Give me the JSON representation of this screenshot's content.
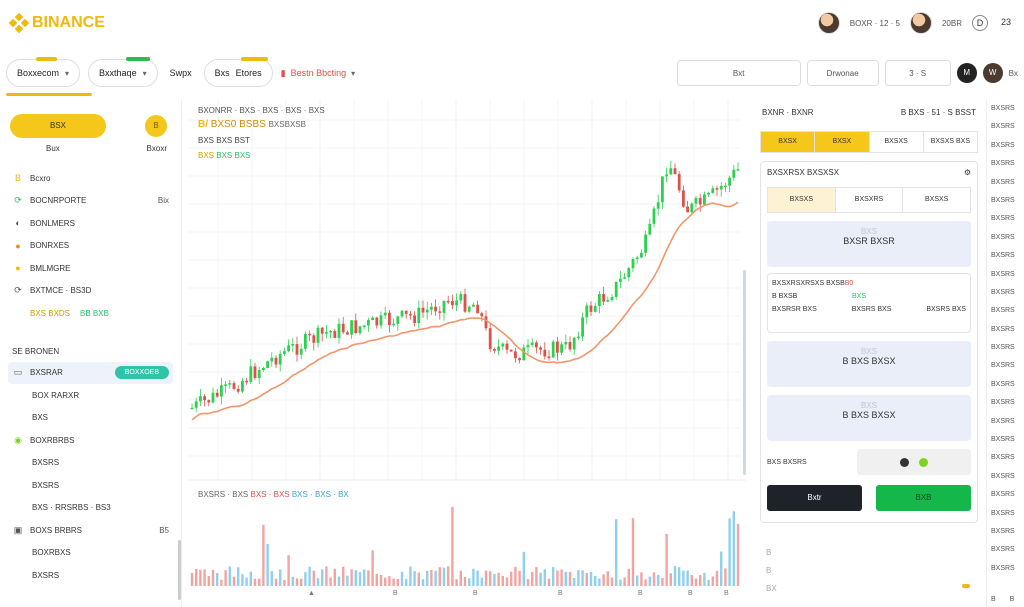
{
  "header": {
    "logo_text": "BINANCE",
    "user_a_text": "BOXR · 12 · 5",
    "user_b_text": "20BR",
    "icon_a": "D",
    "icon_b": "23"
  },
  "toolbar": {
    "pill1": "Boxxecom",
    "pill2": "Bxxthaqe",
    "plain1": "Swpx",
    "pill3_a": "Bxs",
    "pill3_b": "Etores",
    "red_item": "Bestn Bbcting",
    "search_placeholder": "Bxt",
    "input2": "Drwonae",
    "input3": "3 · S",
    "circle_a": "M",
    "circle_b": "W",
    "icon_c": "Bx"
  },
  "sidebar": {
    "primary_button": "BSX",
    "coin_label": "B",
    "sub_left": "Bux",
    "sub_right": "Bxoxr",
    "items": [
      {
        "icon": "B",
        "label": "Bcxro",
        "tail": ""
      },
      {
        "icon": "⟳",
        "label": "BOCNRPORTE",
        "tail": "Bix"
      },
      {
        "icon": "◐",
        "label": "BONLMERS",
        "tail": ""
      },
      {
        "icon": "●",
        "label": "BONRXES",
        "tail": ""
      },
      {
        "icon": "●",
        "label": "BMLMGRE",
        "tail": ""
      },
      {
        "icon": "⟳",
        "label": "BXTMCE · BS3D",
        "tail": ""
      }
    ],
    "highlight_a": "BXS BXDS",
    "highlight_b": "BB BXB",
    "section_label": "SE BRONEN",
    "selected_item": "BXSRAR",
    "selected_badge": "BOXXOEB",
    "sub_items": [
      "BOX RARXR",
      "BXS"
    ],
    "group_item": "BOXRBRBS",
    "group_subs": [
      "BXSRS",
      "BXSRS",
      "BXS · RRSRBS · BS3"
    ],
    "bottom_item": "BOXS BRBRS",
    "bottom_tail": "B5",
    "bottom_subs": [
      "BOXRBXS",
      "BXSRS"
    ]
  },
  "chart": {
    "head_line1": "BXONRR · BXS · BXS · BXS · BXS",
    "head_pair_prefix": "B/",
    "head_pair": "BXS0 BSBS",
    "head_pair_suffix": "BXSBXSB",
    "head_line3": "BXS BXS BST",
    "head_line4_a": "BXS",
    "head_line4_b": "BXS BXS",
    "vol_head_a": "BXSRS · BXS",
    "vol_head_b": "BXS · BXS",
    "vol_head_c": "BXS · BXS · BX",
    "bottom_marks": [
      "▲",
      "B",
      "B",
      "B",
      "B",
      "B",
      "B"
    ]
  },
  "panel": {
    "title_left": "BXNR · BXNR",
    "title_right": "B BXS · 51 · S BSST",
    "tabs": [
      "BXSX",
      "BXSX",
      "BXSXS",
      "BXSXS BXS"
    ],
    "box_title": "BXSXRSX BXSXSX",
    "order_types": [
      "BXSXS",
      "BXSXRS",
      "BXSXS"
    ],
    "field1_hint": "BXS",
    "field1_value": "BXSR BXSR",
    "info_title": "BXSXRSXRSXS BXSB",
    "info_red": "B0",
    "info_row1_left": "B BXSB",
    "info_row1_right": "BXS",
    "info_row2": [
      "BXSRSR BXS",
      "BXSRS BXS",
      "BXSRS BXS"
    ],
    "field2_hint": "BXS",
    "field2_value": "B BXS BXSX",
    "field3_hint": "BXS",
    "field3_value": "B BXS BXSX",
    "pay_label": "BXS BXSRS",
    "pay_a": "B",
    "pay_b": "B",
    "btn_left": "Bxtr",
    "btn_right": "BXB",
    "foot": [
      "B",
      "B",
      "BX"
    ]
  },
  "axis": {
    "ticks": [
      "BXSRS",
      "BXSRS",
      "BXSRS",
      "BXSRS",
      "BXSRS",
      "BXSRS",
      "BXSRS",
      "BXSRS",
      "BXSRS",
      "BXSRS",
      "BXSRS",
      "BXSRS",
      "BXSRS",
      "BXSRS",
      "BXSRS",
      "BXSRS",
      "BXSRS",
      "BXSRS",
      "BXSRS",
      "BXSRS",
      "BXSRS",
      "BXSRS",
      "BXSRS",
      "BXSRS",
      "BXSRS",
      "BXSRS"
    ],
    "bottom": "B",
    "bottom_b": "B"
  },
  "colors": {
    "accent": "#f0b90b",
    "up": "#2cd14f",
    "down": "#e0504b",
    "ma": "#f2966b",
    "vol_up": "#8fd0f0",
    "vol_down": "#f3a3a0"
  }
}
